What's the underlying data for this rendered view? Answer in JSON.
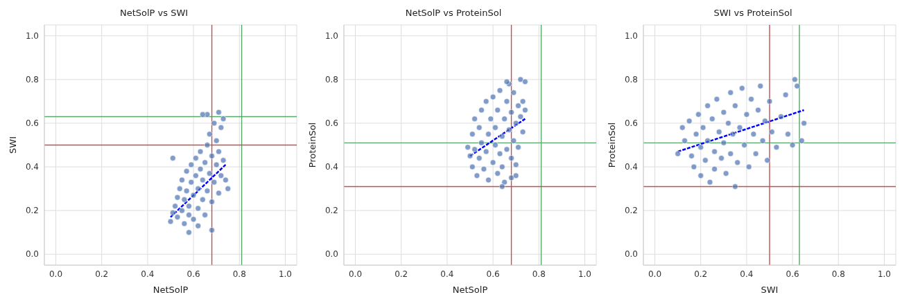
{
  "chart_data": [
    {
      "type": "scatter",
      "title": "NetSolP vs SWI",
      "xlabel": "NetSolP",
      "ylabel": "SWI",
      "xlim": [
        -0.05,
        1.05
      ],
      "ylim": [
        -0.05,
        1.05
      ],
      "xticks": [
        {
          "value": 0,
          "label": "0.0"
        },
        {
          "value": 0.2,
          "label": "0.2"
        },
        {
          "value": 0.4,
          "label": "0.4"
        },
        {
          "value": 0.6,
          "label": "0.6"
        },
        {
          "value": 0.8,
          "label": "0.8"
        },
        {
          "value": 1,
          "label": "1.0"
        }
      ],
      "yticks": [
        {
          "value": 0,
          "label": "0.0"
        },
        {
          "value": 0.2,
          "label": "0.2"
        },
        {
          "value": 0.4,
          "label": "0.4"
        },
        {
          "value": 0.6,
          "label": "0.6"
        },
        {
          "value": 0.8,
          "label": "0.8"
        },
        {
          "value": 1,
          "label": "1.0"
        }
      ],
      "grid": true,
      "series": [
        {
          "marker": "circle",
          "color": "#4c72b0",
          "x": [
            0.5,
            0.51,
            0.52,
            0.53,
            0.53,
            0.54,
            0.55,
            0.55,
            0.56,
            0.56,
            0.57,
            0.57,
            0.58,
            0.58,
            0.58,
            0.59,
            0.59,
            0.6,
            0.6,
            0.61,
            0.61,
            0.62,
            0.62,
            0.62,
            0.63,
            0.63,
            0.64,
            0.64,
            0.65,
            0.65,
            0.66,
            0.66,
            0.67,
            0.67,
            0.68,
            0.68,
            0.68,
            0.69,
            0.69,
            0.7,
            0.7,
            0.71,
            0.71,
            0.72,
            0.72,
            0.73,
            0.74,
            0.73,
            0.66,
            0.64,
            0.71,
            0.51,
            0.75
          ],
          "values": [
            0.15,
            0.19,
            0.22,
            0.17,
            0.26,
            0.3,
            0.2,
            0.34,
            0.14,
            0.25,
            0.38,
            0.29,
            0.18,
            0.22,
            0.1,
            0.33,
            0.41,
            0.27,
            0.16,
            0.36,
            0.44,
            0.21,
            0.3,
            0.13,
            0.39,
            0.47,
            0.25,
            0.34,
            0.42,
            0.18,
            0.5,
            0.29,
            0.37,
            0.55,
            0.45,
            0.24,
            0.11,
            0.33,
            0.6,
            0.41,
            0.52,
            0.28,
            0.47,
            0.36,
            0.58,
            0.43,
            0.34,
            0.62,
            0.64,
            0.64,
            0.65,
            0.44,
            0.3
          ]
        },
        {
          "type": "line",
          "color": "#0000ff",
          "line_style": "dashed",
          "x": [
            0.5,
            0.74
          ],
          "values": [
            0.17,
            0.41
          ]
        }
      ],
      "ref_lines": [
        {
          "axis": "x",
          "value": 0.68,
          "color": "#c44e52"
        },
        {
          "axis": "x",
          "value": 0.81,
          "color": "#55a868"
        },
        {
          "axis": "y",
          "value": 0.5,
          "color": "#c44e52"
        },
        {
          "axis": "y",
          "value": 0.63,
          "color": "#55a868"
        }
      ]
    },
    {
      "type": "scatter",
      "title": "NetSolP vs ProteinSol",
      "xlabel": "NetSolP",
      "ylabel": "ProteinSol",
      "xlim": [
        -0.05,
        1.05
      ],
      "ylim": [
        -0.05,
        1.05
      ],
      "xticks": [
        {
          "value": 0,
          "label": "0.0"
        },
        {
          "value": 0.2,
          "label": "0.2"
        },
        {
          "value": 0.4,
          "label": "0.4"
        },
        {
          "value": 0.6,
          "label": "0.6"
        },
        {
          "value": 0.8,
          "label": "0.8"
        },
        {
          "value": 1,
          "label": "1.0"
        }
      ],
      "yticks": [
        {
          "value": 0,
          "label": "0.0"
        },
        {
          "value": 0.2,
          "label": "0.2"
        },
        {
          "value": 0.4,
          "label": "0.4"
        },
        {
          "value": 0.6,
          "label": "0.6"
        },
        {
          "value": 0.8,
          "label": "0.8"
        },
        {
          "value": 1,
          "label": "1.0"
        }
      ],
      "grid": true,
      "series": [
        {
          "marker": "circle",
          "color": "#4c72b0",
          "x": [
            0.49,
            0.5,
            0.51,
            0.51,
            0.52,
            0.52,
            0.53,
            0.54,
            0.54,
            0.55,
            0.55,
            0.56,
            0.57,
            0.57,
            0.58,
            0.58,
            0.59,
            0.6,
            0.6,
            0.61,
            0.61,
            0.62,
            0.62,
            0.63,
            0.63,
            0.64,
            0.64,
            0.65,
            0.65,
            0.66,
            0.66,
            0.67,
            0.67,
            0.68,
            0.68,
            0.68,
            0.69,
            0.69,
            0.7,
            0.7,
            0.71,
            0.71,
            0.72,
            0.72,
            0.73,
            0.73,
            0.74,
            0.74,
            0.64,
            0.7,
            0.66
          ],
          "values": [
            0.49,
            0.45,
            0.4,
            0.55,
            0.62,
            0.48,
            0.36,
            0.58,
            0.44,
            0.66,
            0.51,
            0.39,
            0.7,
            0.47,
            0.55,
            0.34,
            0.62,
            0.42,
            0.72,
            0.5,
            0.58,
            0.37,
            0.66,
            0.46,
            0.75,
            0.54,
            0.4,
            0.62,
            0.33,
            0.7,
            0.48,
            0.57,
            0.78,
            0.44,
            0.65,
            0.35,
            0.52,
            0.74,
            0.6,
            0.41,
            0.68,
            0.49,
            0.63,
            0.8,
            0.56,
            0.7,
            0.66,
            0.79,
            0.31,
            0.36,
            0.79
          ]
        },
        {
          "type": "line",
          "color": "#0000ff",
          "line_style": "dashed",
          "x": [
            0.5,
            0.74
          ],
          "values": [
            0.45,
            0.62
          ]
        }
      ],
      "ref_lines": [
        {
          "axis": "x",
          "value": 0.68,
          "color": "#c44e52"
        },
        {
          "axis": "x",
          "value": 0.81,
          "color": "#55a868"
        },
        {
          "axis": "y",
          "value": 0.31,
          "color": "#c44e52"
        },
        {
          "axis": "y",
          "value": 0.51,
          "color": "#55a868"
        }
      ]
    },
    {
      "type": "scatter",
      "title": "SWI vs ProteinSol",
      "xlabel": "SWI",
      "ylabel": "ProteinSol",
      "xlim": [
        -0.05,
        1.05
      ],
      "ylim": [
        -0.05,
        1.05
      ],
      "xticks": [
        {
          "value": 0,
          "label": "0.0"
        },
        {
          "value": 0.2,
          "label": "0.2"
        },
        {
          "value": 0.4,
          "label": "0.4"
        },
        {
          "value": 0.6,
          "label": "0.6"
        },
        {
          "value": 0.8,
          "label": "0.8"
        },
        {
          "value": 1,
          "label": "1.0"
        }
      ],
      "yticks": [
        {
          "value": 0,
          "label": "0.0"
        },
        {
          "value": 0.2,
          "label": "0.2"
        },
        {
          "value": 0.4,
          "label": "0.4"
        },
        {
          "value": 0.6,
          "label": "0.6"
        },
        {
          "value": 0.8,
          "label": "0.8"
        },
        {
          "value": 1,
          "label": "1.0"
        }
      ],
      "grid": true,
      "series": [
        {
          "marker": "circle",
          "color": "#4c72b0",
          "x": [
            0.1,
            0.12,
            0.13,
            0.15,
            0.16,
            0.17,
            0.18,
            0.19,
            0.2,
            0.2,
            0.21,
            0.22,
            0.23,
            0.23,
            0.24,
            0.25,
            0.26,
            0.26,
            0.27,
            0.28,
            0.29,
            0.3,
            0.3,
            0.31,
            0.32,
            0.33,
            0.33,
            0.34,
            0.35,
            0.35,
            0.36,
            0.37,
            0.38,
            0.39,
            0.4,
            0.41,
            0.42,
            0.43,
            0.44,
            0.45,
            0.46,
            0.47,
            0.48,
            0.49,
            0.5,
            0.51,
            0.53,
            0.55,
            0.57,
            0.58,
            0.61,
            0.62,
            0.65,
            0.64,
            0.6
          ],
          "values": [
            0.46,
            0.58,
            0.52,
            0.61,
            0.45,
            0.4,
            0.55,
            0.64,
            0.49,
            0.36,
            0.58,
            0.43,
            0.68,
            0.52,
            0.33,
            0.62,
            0.47,
            0.39,
            0.71,
            0.56,
            0.44,
            0.65,
            0.51,
            0.37,
            0.6,
            0.74,
            0.46,
            0.55,
            0.68,
            0.31,
            0.42,
            0.58,
            0.76,
            0.5,
            0.64,
            0.4,
            0.71,
            0.55,
            0.46,
            0.66,
            0.77,
            0.52,
            0.61,
            0.43,
            0.7,
            0.56,
            0.49,
            0.63,
            0.73,
            0.55,
            0.8,
            0.77,
            0.6,
            0.52,
            0.5
          ]
        },
        {
          "type": "line",
          "color": "#0000ff",
          "line_style": "dashed",
          "x": [
            0.1,
            0.65
          ],
          "values": [
            0.47,
            0.66
          ]
        }
      ],
      "ref_lines": [
        {
          "axis": "x",
          "value": 0.5,
          "color": "#c44e52"
        },
        {
          "axis": "x",
          "value": 0.63,
          "color": "#55a868"
        },
        {
          "axis": "y",
          "value": 0.31,
          "color": "#c44e52"
        },
        {
          "axis": "y",
          "value": 0.51,
          "color": "#55a868"
        }
      ]
    }
  ]
}
